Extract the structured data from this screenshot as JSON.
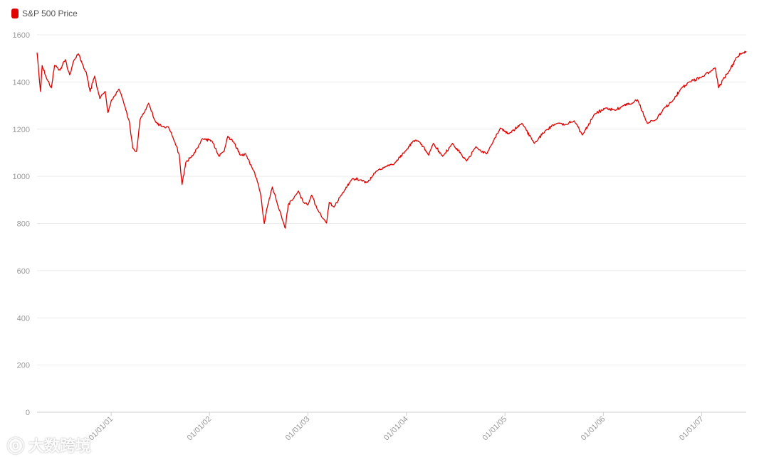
{
  "legend": {
    "label": "S&P 500 Price",
    "color": "#e00000"
  },
  "watermark": {
    "icon": "eye-logo",
    "text": "大数跨境"
  },
  "chart_data": {
    "type": "line",
    "title": "",
    "xlabel": "",
    "ylabel": "",
    "xlim": [
      "2000-04-01",
      "2007-06-15"
    ],
    "ylim": [
      0,
      1600
    ],
    "yticks": [
      0,
      200,
      400,
      600,
      800,
      1000,
      1200,
      1400,
      1600
    ],
    "xticks": [
      {
        "date": "2001-01-01",
        "label": "01/01/01"
      },
      {
        "date": "2002-01-01",
        "label": "01/01/02"
      },
      {
        "date": "2003-01-01",
        "label": "01/01/03"
      },
      {
        "date": "2004-01-01",
        "label": "01/01/04"
      },
      {
        "date": "2005-01-01",
        "label": "01/01/05"
      },
      {
        "date": "2006-01-01",
        "label": "01/01/06"
      },
      {
        "date": "2007-01-01",
        "label": "01/01/07"
      }
    ],
    "grid": true,
    "line_color": "#e00000",
    "series": [
      {
        "name": "S&P 500 Price",
        "points": [
          [
            "2000-04-01",
            1525
          ],
          [
            "2000-04-14",
            1360
          ],
          [
            "2000-04-20",
            1470
          ],
          [
            "2000-05-05",
            1420
          ],
          [
            "2000-05-24",
            1375
          ],
          [
            "2000-06-05",
            1470
          ],
          [
            "2000-06-25",
            1450
          ],
          [
            "2000-07-15",
            1495
          ],
          [
            "2000-07-31",
            1430
          ],
          [
            "2000-08-15",
            1490
          ],
          [
            "2000-09-01",
            1520
          ],
          [
            "2000-09-15",
            1480
          ],
          [
            "2000-10-01",
            1440
          ],
          [
            "2000-10-15",
            1360
          ],
          [
            "2000-11-01",
            1425
          ],
          [
            "2000-11-20",
            1330
          ],
          [
            "2000-12-10",
            1360
          ],
          [
            "2000-12-20",
            1270
          ],
          [
            "2001-01-01",
            1320
          ],
          [
            "2001-01-30",
            1370
          ],
          [
            "2001-02-15",
            1320
          ],
          [
            "2001-03-10",
            1230
          ],
          [
            "2001-03-22",
            1120
          ],
          [
            "2001-04-05",
            1105
          ],
          [
            "2001-04-18",
            1240
          ],
          [
            "2001-05-20",
            1310
          ],
          [
            "2001-06-15",
            1230
          ],
          [
            "2001-07-10",
            1210
          ],
          [
            "2001-08-01",
            1210
          ],
          [
            "2001-08-30",
            1130
          ],
          [
            "2001-09-10",
            1095
          ],
          [
            "2001-09-21",
            965
          ],
          [
            "2001-10-05",
            1060
          ],
          [
            "2001-11-01",
            1090
          ],
          [
            "2001-12-05",
            1160
          ],
          [
            "2002-01-10",
            1150
          ],
          [
            "2002-02-05",
            1085
          ],
          [
            "2002-02-25",
            1110
          ],
          [
            "2002-03-10",
            1170
          ],
          [
            "2002-04-01",
            1145
          ],
          [
            "2002-04-25",
            1090
          ],
          [
            "2002-05-15",
            1095
          ],
          [
            "2002-06-10",
            1030
          ],
          [
            "2002-06-25",
            990
          ],
          [
            "2002-07-10",
            920
          ],
          [
            "2002-07-23",
            800
          ],
          [
            "2002-08-01",
            860
          ],
          [
            "2002-08-22",
            955
          ],
          [
            "2002-09-10",
            880
          ],
          [
            "2002-09-25",
            830
          ],
          [
            "2002-10-09",
            780
          ],
          [
            "2002-10-20",
            880
          ],
          [
            "2002-11-05",
            900
          ],
          [
            "2002-11-27",
            938
          ],
          [
            "2002-12-15",
            890
          ],
          [
            "2003-01-01",
            880
          ],
          [
            "2003-01-15",
            920
          ],
          [
            "2003-02-05",
            860
          ],
          [
            "2003-03-11",
            802
          ],
          [
            "2003-03-21",
            890
          ],
          [
            "2003-04-08",
            870
          ],
          [
            "2003-05-01",
            915
          ],
          [
            "2003-06-15",
            990
          ],
          [
            "2003-07-15",
            985
          ],
          [
            "2003-08-10",
            975
          ],
          [
            "2003-09-15",
            1025
          ],
          [
            "2003-10-15",
            1040
          ],
          [
            "2003-11-15",
            1050
          ],
          [
            "2003-12-31",
            1110
          ],
          [
            "2004-01-26",
            1150
          ],
          [
            "2004-02-20",
            1145
          ],
          [
            "2004-03-24",
            1090
          ],
          [
            "2004-04-10",
            1140
          ],
          [
            "2004-05-15",
            1085
          ],
          [
            "2004-06-20",
            1140
          ],
          [
            "2004-08-12",
            1065
          ],
          [
            "2004-09-15",
            1125
          ],
          [
            "2004-10-25",
            1095
          ],
          [
            "2004-12-15",
            1205
          ],
          [
            "2005-01-15",
            1180
          ],
          [
            "2005-03-05",
            1225
          ],
          [
            "2005-04-20",
            1140
          ],
          [
            "2005-06-01",
            1195
          ],
          [
            "2005-07-15",
            1225
          ],
          [
            "2005-08-15",
            1220
          ],
          [
            "2005-09-15",
            1235
          ],
          [
            "2005-10-15",
            1175
          ],
          [
            "2005-11-30",
            1265
          ],
          [
            "2006-01-10",
            1290
          ],
          [
            "2006-02-15",
            1280
          ],
          [
            "2006-03-15",
            1300
          ],
          [
            "2006-04-20",
            1310
          ],
          [
            "2006-05-08",
            1325
          ],
          [
            "2006-06-13",
            1225
          ],
          [
            "2006-07-15",
            1240
          ],
          [
            "2006-08-15",
            1290
          ],
          [
            "2006-09-15",
            1320
          ],
          [
            "2006-10-15",
            1370
          ],
          [
            "2006-11-15",
            1400
          ],
          [
            "2006-12-31",
            1420
          ],
          [
            "2007-02-20",
            1460
          ],
          [
            "2007-03-05",
            1375
          ],
          [
            "2007-03-20",
            1410
          ],
          [
            "2007-04-15",
            1450
          ],
          [
            "2007-05-10",
            1505
          ],
          [
            "2007-06-05",
            1525
          ],
          [
            "2007-06-15",
            1530
          ]
        ]
      }
    ]
  }
}
